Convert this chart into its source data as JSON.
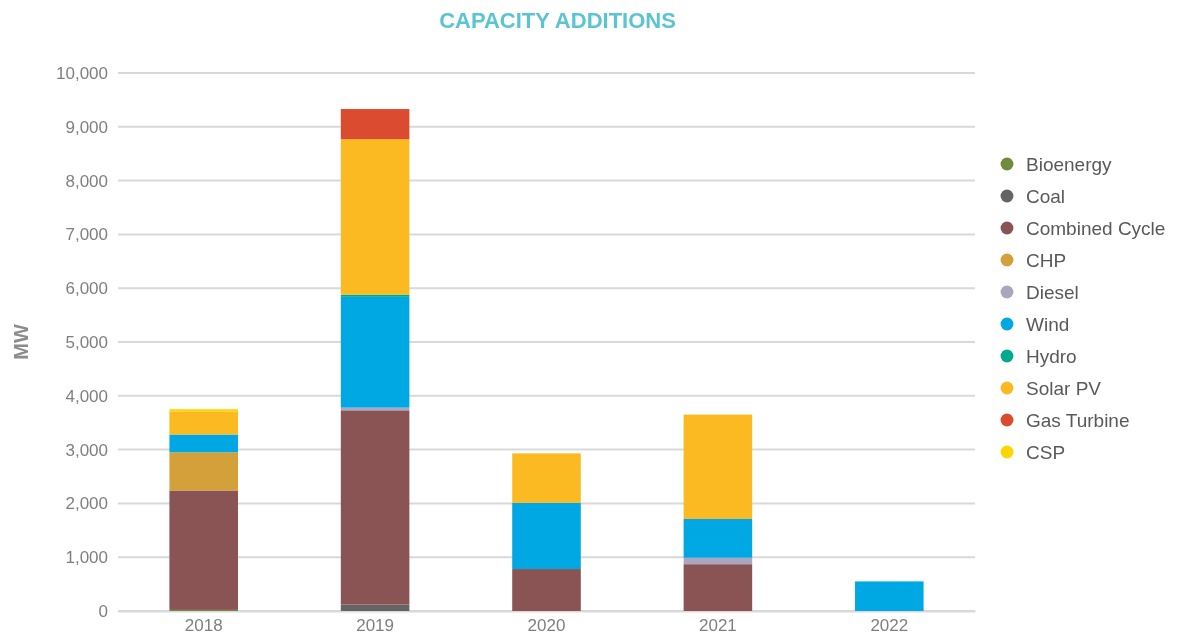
{
  "chart_data": {
    "type": "bar",
    "title": "CAPACITY ADDITIONS",
    "ylabel": "MW",
    "categories": [
      "2018",
      "2019",
      "2020",
      "2021",
      "2022"
    ],
    "stacked": true,
    "series": [
      {
        "name": "Bioenergy",
        "color": "#6f8c3b",
        "values": [
          20,
          null,
          null,
          null,
          null
        ]
      },
      {
        "name": "Coal",
        "color": "#646464",
        "values": [
          null,
          120,
          null,
          null,
          null
        ]
      },
      {
        "name": "Combined Cycle",
        "color": "#8b5454",
        "values": [
          2220,
          3610,
          780,
          870,
          null
        ]
      },
      {
        "name": "CHP",
        "color": "#d4a03a",
        "values": [
          710,
          null,
          null,
          null,
          null
        ]
      },
      {
        "name": "Diesel",
        "color": "#aaa6c0",
        "values": [
          null,
          50,
          null,
          120,
          null
        ]
      },
      {
        "name": "Wind",
        "color": "#00a8e3",
        "values": [
          330,
          2060,
          1230,
          720,
          550
        ]
      },
      {
        "name": "Hydro",
        "color": "#00a98f",
        "values": [
          null,
          40,
          null,
          null,
          null
        ]
      },
      {
        "name": "Solar PV",
        "color": "#fbb922",
        "values": [
          430,
          2890,
          920,
          1940,
          null
        ]
      },
      {
        "name": "Gas Turbine",
        "color": "#da4b2f",
        "values": [
          null,
          560,
          null,
          null,
          null
        ]
      },
      {
        "name": "CSP",
        "color": "#ffd500",
        "values": [
          40,
          null,
          null,
          null,
          null
        ]
      }
    ],
    "ylim": [
      0,
      10000
    ],
    "yticks": [
      {
        "value": 0,
        "label": "0"
      },
      {
        "value": 1000,
        "label": "1,000"
      },
      {
        "value": 2000,
        "label": "2,000"
      },
      {
        "value": 3000,
        "label": "3,000"
      },
      {
        "value": 4000,
        "label": "4,000"
      },
      {
        "value": 5000,
        "label": "5,000"
      },
      {
        "value": 6000,
        "label": "6,000"
      },
      {
        "value": 7000,
        "label": "7,000"
      },
      {
        "value": 8000,
        "label": "8,000"
      },
      {
        "value": 9000,
        "label": "9,000"
      },
      {
        "value": 10000,
        "label": "10,000"
      }
    ],
    "grid": "y",
    "legend": "right",
    "marker": "circle"
  }
}
